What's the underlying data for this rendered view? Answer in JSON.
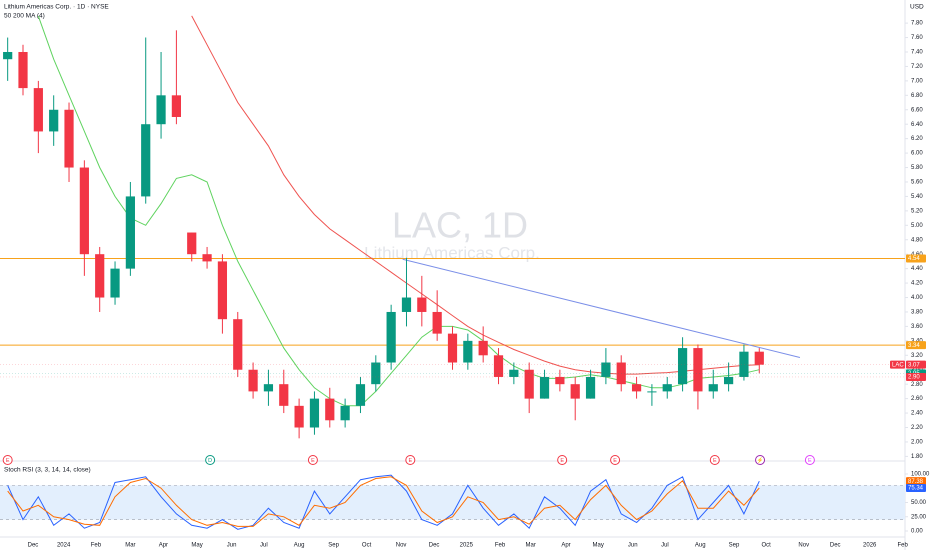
{
  "chart_data": [
    {
      "type": "candlestick",
      "title": "Lithium Americas Corp. · 1D · NYSE",
      "indicator": "50 200 MA (4)",
      "currency": "USD",
      "watermark": "LAC, 1D",
      "watermark_subtitle": "Lithium Americas Corp.",
      "x": [
        1,
        3,
        5,
        7,
        9,
        11,
        13,
        15,
        17,
        19,
        21,
        23,
        25,
        27,
        29,
        31,
        33,
        35,
        37,
        39,
        41,
        43,
        45,
        47,
        49,
        51,
        53,
        55,
        57,
        59,
        61,
        63,
        65,
        67,
        69,
        71,
        73,
        75,
        77,
        79,
        81,
        83,
        85,
        87,
        89,
        91,
        93,
        95,
        97,
        99
      ],
      "open": [
        7.3,
        7.4,
        6.9,
        6.3,
        6.6,
        5.8,
        4.6,
        4.0,
        4.4,
        5.4,
        6.4,
        6.8,
        4.9,
        4.6,
        4.5,
        3.7,
        3.0,
        2.7,
        2.8,
        2.5,
        2.2,
        2.6,
        2.3,
        2.5,
        2.8,
        3.1,
        3.8,
        4.0,
        3.8,
        3.5,
        3.1,
        3.4,
        3.2,
        2.9,
        3.0,
        2.6,
        2.9,
        2.8,
        2.6,
        2.9,
        3.1,
        2.8,
        2.7,
        2.7,
        2.8,
        3.3,
        2.7,
        2.8,
        2.9,
        3.25
      ],
      "high": [
        7.6,
        7.5,
        7.0,
        6.8,
        6.7,
        5.9,
        4.7,
        4.5,
        5.6,
        7.6,
        7.4,
        7.7,
        4.9,
        4.7,
        4.6,
        3.8,
        3.1,
        3.0,
        3.0,
        2.6,
        2.7,
        2.75,
        2.6,
        2.9,
        3.2,
        3.9,
        4.55,
        4.3,
        4.1,
        3.6,
        3.5,
        3.6,
        3.3,
        3.1,
        3.1,
        3.0,
        3.0,
        2.9,
        3.0,
        3.3,
        3.2,
        2.9,
        2.8,
        2.9,
        3.45,
        3.35,
        3.0,
        3.1,
        3.35,
        3.3
      ],
      "low": [
        7.0,
        6.8,
        6.0,
        6.1,
        5.6,
        4.3,
        3.8,
        3.9,
        4.3,
        5.3,
        6.2,
        6.4,
        4.5,
        4.4,
        3.5,
        2.9,
        2.6,
        2.5,
        2.4,
        2.05,
        2.1,
        2.2,
        2.2,
        2.4,
        2.7,
        3.0,
        3.6,
        3.6,
        3.4,
        3.0,
        3.0,
        3.1,
        2.8,
        2.8,
        2.4,
        2.6,
        2.7,
        2.3,
        2.6,
        2.8,
        2.7,
        2.6,
        2.5,
        2.6,
        2.7,
        2.45,
        2.6,
        2.7,
        2.85,
        2.95
      ],
      "close": [
        7.4,
        6.9,
        6.3,
        6.6,
        5.8,
        4.6,
        4.0,
        4.4,
        5.4,
        6.4,
        6.8,
        6.5,
        4.6,
        4.5,
        3.7,
        3.0,
        2.7,
        2.8,
        2.5,
        2.2,
        2.6,
        2.3,
        2.5,
        2.8,
        3.1,
        3.8,
        4.0,
        3.8,
        3.5,
        3.1,
        3.4,
        3.2,
        2.9,
        3.0,
        2.6,
        2.9,
        2.8,
        2.6,
        2.9,
        3.1,
        2.8,
        2.7,
        2.7,
        2.8,
        3.3,
        2.7,
        2.8,
        2.9,
        3.25,
        3.07
      ],
      "up_color": "#089981",
      "down_color": "#f23645",
      "series": [
        {
          "color": "#5fd35f",
          "values": [
            null,
            null,
            7.9,
            7.3,
            6.8,
            6.3,
            5.8,
            5.4,
            5.1,
            5.0,
            5.3,
            5.65,
            5.7,
            5.6,
            5.0,
            4.5,
            4.1,
            3.7,
            3.3,
            3.0,
            2.75,
            2.6,
            2.5,
            2.5,
            2.7,
            2.95,
            3.2,
            3.45,
            3.6,
            3.6,
            3.55,
            3.4,
            3.2,
            3.05,
            2.95,
            2.88,
            2.88,
            2.9,
            2.93,
            2.9,
            2.85,
            2.8,
            2.75,
            2.75,
            2.8,
            2.88,
            2.9,
            2.92,
            2.95,
            3.0
          ]
        },
        {
          "color": "#ef5350",
          "values": [
            null,
            null,
            null,
            null,
            null,
            null,
            null,
            null,
            null,
            null,
            null,
            null,
            7.9,
            7.5,
            7.1,
            6.7,
            6.4,
            6.1,
            5.7,
            5.4,
            5.15,
            4.95,
            4.8,
            4.65,
            4.5,
            4.35,
            4.2,
            4.05,
            3.9,
            3.75,
            3.6,
            3.48,
            3.38,
            3.28,
            3.2,
            3.12,
            3.05,
            3.0,
            2.97,
            2.95,
            2.94,
            2.94,
            2.95,
            2.96,
            2.98,
            3.0,
            3.02,
            3.04,
            3.06,
            3.07
          ]
        }
      ],
      "levels": [
        {
          "value": 4.54,
          "label": "4.54",
          "color": "#f7a21b"
        },
        {
          "value": 3.34,
          "label": "3.34",
          "color": "#f7a21b"
        }
      ],
      "trendline": {
        "x": [
          52.5,
          104.3
        ],
        "y": [
          4.53,
          3.17
        ],
        "color": "#7b8fe8"
      },
      "price_badges": [
        {
          "value": 3.07,
          "label": "3.07",
          "symbol": "LAC",
          "color": "#f23645"
        },
        {
          "value": 2.95,
          "label": "2.95",
          "color": "#089981"
        },
        {
          "value": 2.9,
          "label": "2.90",
          "color": "#f23645"
        }
      ],
      "events": [
        {
          "x": 1.0,
          "label": "E",
          "color": "#f23645"
        },
        {
          "x": 27.4,
          "label": "D",
          "color": "#089981"
        },
        {
          "x": 40.8,
          "label": "E",
          "color": "#f23645"
        },
        {
          "x": 53.5,
          "label": "E",
          "color": "#f23645"
        },
        {
          "x": 73.3,
          "label": "E",
          "color": "#f23645"
        },
        {
          "x": 80.2,
          "label": "E",
          "color": "#f23645"
        },
        {
          "x": 93.2,
          "label": "E",
          "color": "#f23645"
        },
        {
          "x": 99.1,
          "label": "⚡",
          "color": "#9c27b0"
        },
        {
          "x": 105.6,
          "label": "E",
          "color": "#e040fb"
        }
      ],
      "xlim": [
        0,
        118
      ],
      "xticks": [
        {
          "value": 4.3,
          "label": "Dec"
        },
        {
          "value": 8.3,
          "label": "2024"
        },
        {
          "value": 12.5,
          "label": "Feb"
        },
        {
          "value": 17,
          "label": "Mar"
        },
        {
          "value": 21.3,
          "label": "Apr"
        },
        {
          "value": 25.7,
          "label": "May"
        },
        {
          "value": 30.2,
          "label": "Jun"
        },
        {
          "value": 34.4,
          "label": "Jul"
        },
        {
          "value": 39,
          "label": "Aug"
        },
        {
          "value": 43.5,
          "label": "Sep"
        },
        {
          "value": 47.8,
          "label": "Oct"
        },
        {
          "value": 52.3,
          "label": "Nov"
        },
        {
          "value": 56.6,
          "label": "Dec"
        },
        {
          "value": 60.8,
          "label": "2025"
        },
        {
          "value": 65.2,
          "label": "Feb"
        },
        {
          "value": 69.2,
          "label": "Mar"
        },
        {
          "value": 73.8,
          "label": "Apr"
        },
        {
          "value": 78,
          "label": "May"
        },
        {
          "value": 82.5,
          "label": "Jun"
        },
        {
          "value": 86.7,
          "label": "Jul"
        },
        {
          "value": 91.3,
          "label": "Aug"
        },
        {
          "value": 95.7,
          "label": "Sep"
        },
        {
          "value": 99.9,
          "label": "Oct"
        },
        {
          "value": 104.8,
          "label": "Nov"
        },
        {
          "value": 108.9,
          "label": "Dec"
        },
        {
          "value": 113.4,
          "label": "2026"
        },
        {
          "value": 117.7,
          "label": "Feb"
        }
      ],
      "ylim": [
        1.75,
        8.12
      ],
      "yticks": [
        {
          "value": 1.8,
          "label": "1.80"
        },
        {
          "value": 2.0,
          "label": "2.00"
        },
        {
          "value": 2.2,
          "label": "2.20"
        },
        {
          "value": 2.4,
          "label": "2.40"
        },
        {
          "value": 2.6,
          "label": "2.60"
        },
        {
          "value": 2.8,
          "label": "2.80"
        },
        {
          "value": 3.0,
          "label": "3.00"
        },
        {
          "value": 3.2,
          "label": "3.20"
        },
        {
          "value": 3.4,
          "label": "3.40"
        },
        {
          "value": 3.6,
          "label": "3.60"
        },
        {
          "value": 3.8,
          "label": "3.80"
        },
        {
          "value": 4.0,
          "label": "4.00"
        },
        {
          "value": 4.2,
          "label": "4.20"
        },
        {
          "value": 4.4,
          "label": "4.40"
        },
        {
          "value": 4.6,
          "label": "4.60"
        },
        {
          "value": 4.8,
          "label": "4.80"
        },
        {
          "value": 5.0,
          "label": "5.00"
        },
        {
          "value": 5.2,
          "label": "5.20"
        },
        {
          "value": 5.4,
          "label": "5.40"
        },
        {
          "value": 5.6,
          "label": "5.60"
        },
        {
          "value": 5.8,
          "label": "5.80"
        },
        {
          "value": 6.0,
          "label": "6.00"
        },
        {
          "value": 6.2,
          "label": "6.20"
        },
        {
          "value": 6.4,
          "label": "6.40"
        },
        {
          "value": 6.6,
          "label": "6.60"
        },
        {
          "value": 6.8,
          "label": "6.80"
        },
        {
          "value": 7.0,
          "label": "7.00"
        },
        {
          "value": 7.2,
          "label": "7.20"
        },
        {
          "value": 7.4,
          "label": "7.40"
        },
        {
          "value": 7.6,
          "label": "7.60"
        },
        {
          "value": 7.8,
          "label": "7.80"
        }
      ]
    },
    {
      "type": "line",
      "title": "Stoch RSI (3, 3, 14, 14, close)",
      "x": [
        1,
        3,
        5,
        7,
        9,
        11,
        13,
        15,
        17,
        19,
        21,
        23,
        25,
        27,
        29,
        31,
        33,
        35,
        37,
        39,
        41,
        43,
        45,
        47,
        49,
        51,
        53,
        55,
        57,
        59,
        61,
        63,
        65,
        67,
        69,
        71,
        73,
        75,
        77,
        79,
        81,
        83,
        85,
        87,
        89,
        91,
        93,
        95,
        97,
        99
      ],
      "series": [
        {
          "color": "#2962ff",
          "values": [
            80,
            20,
            60,
            10,
            30,
            5,
            15,
            85,
            90,
            95,
            60,
            30,
            10,
            5,
            20,
            3,
            10,
            40,
            15,
            5,
            70,
            30,
            60,
            90,
            95,
            98,
            70,
            20,
            10,
            30,
            80,
            40,
            10,
            30,
            5,
            60,
            40,
            10,
            70,
            90,
            30,
            15,
            40,
            80,
            95,
            20,
            50,
            80,
            30,
            87.38
          ]
        },
        {
          "color": "#ff6d00",
          "values": [
            70,
            35,
            45,
            25,
            20,
            12,
            10,
            60,
            85,
            92,
            75,
            45,
            20,
            10,
            15,
            8,
            8,
            30,
            25,
            10,
            45,
            40,
            50,
            80,
            92,
            95,
            80,
            35,
            15,
            25,
            60,
            50,
            20,
            25,
            12,
            40,
            45,
            20,
            55,
            80,
            45,
            20,
            35,
            65,
            88,
            40,
            40,
            70,
            45,
            75.34
          ]
        }
      ],
      "band": [
        20,
        80
      ],
      "band_color": "#e3effd",
      "badges": [
        {
          "value": 87.38,
          "label": "87.38",
          "color": "#ff6d00"
        },
        {
          "value": 75.34,
          "label": "75.34",
          "color": "#2962ff"
        }
      ],
      "xlim": [
        0,
        118
      ],
      "ylim": [
        -7,
        121
      ],
      "yticks": [
        {
          "value": 0,
          "label": "0.00"
        },
        {
          "value": 25,
          "label": "25.00"
        },
        {
          "value": 50,
          "label": "50.00"
        },
        {
          "value": 100,
          "label": "100.00"
        }
      ]
    }
  ]
}
